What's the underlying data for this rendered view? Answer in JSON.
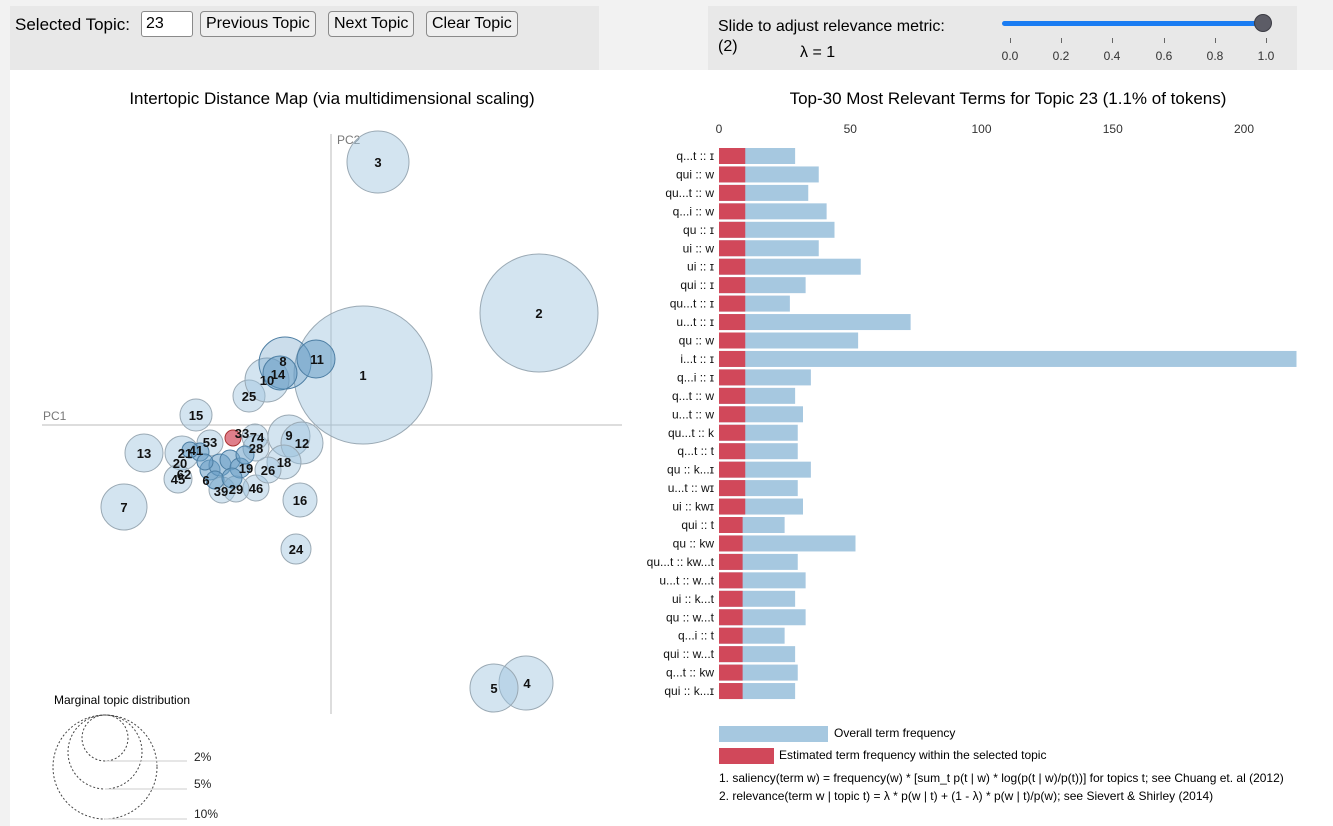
{
  "controls": {
    "selected_label": "Selected Topic:",
    "selected_value": "23",
    "prev_label": "Previous Topic",
    "next_label": "Next Topic",
    "clear_label": "Clear Topic"
  },
  "slider": {
    "label": "Slide to adjust relevance metric:(2)",
    "lambda_text": "λ = 1",
    "value": 1.0,
    "ticks": [
      "0.0",
      "0.2",
      "0.4",
      "0.6",
      "0.8",
      "1.0"
    ],
    "color": "#1a7cf2"
  },
  "map": {
    "title": "Intertopic Distance Map (via multidimensional scaling)",
    "pc1_label": "PC1",
    "pc2_label": "PC2",
    "circle_color": "#9ec4dd",
    "selected_color": "#d1485a",
    "marginal_title": "Marginal topic distribution",
    "marginal_levels": [
      "2%",
      "5%",
      "10%"
    ]
  },
  "terms": {
    "title": "Top-30 Most Relevant Terms for Topic 23 (1.1% of tokens)",
    "axis_ticks": [
      "0",
      "50",
      "100",
      "150",
      "200"
    ],
    "overall_color": "#a6c8e0",
    "topic_color": "#d1485a",
    "legend_overall": "Overall term frequency",
    "legend_topic": "Estimated term frequency within the selected topic",
    "footnote1": "1. saliency(term w) = frequency(w) * [sum_t p(t | w) * log(p(t | w)/p(t))] for topics t; see Chuang et. al (2012)",
    "footnote2": "2. relevance(term w | topic t) = λ * p(w | t) + (1 - λ) * p(w | t)/p(w); see Sievert & Shirley (2014)"
  },
  "chart_data": {
    "type": "bar",
    "orientation": "horizontal",
    "xlim": [
      0,
      220
    ],
    "categories": [
      "q...t :: ɪ",
      "qui :: w",
      "qu...t :: w",
      "q...i :: w",
      "qu :: ɪ",
      "ui :: w",
      "ui :: ɪ",
      "qui :: ɪ",
      "qu...t :: ɪ",
      "u...t :: ɪ",
      "qu :: w",
      "i...t :: ɪ",
      "q...i :: ɪ",
      "q...t :: w",
      "u...t :: w",
      "qu...t :: k",
      "q...t :: t",
      "qu :: k...ɪ",
      "u...t :: wɪ",
      "ui :: kwɪ",
      "qui :: t",
      "qu :: kw",
      "qu...t :: kw...t",
      "u...t :: w...t",
      "ui :: k...t",
      "qu :: w...t",
      "q...i :: t",
      "qui :: w...t",
      "q...t :: kw",
      "qui :: k...ɪ"
    ],
    "series": [
      {
        "name": "Overall term frequency",
        "values": [
          29,
          38,
          34,
          41,
          44,
          38,
          54,
          33,
          27,
          73,
          53,
          220,
          35,
          29,
          32,
          30,
          30,
          35,
          30,
          32,
          25,
          52,
          30,
          33,
          29,
          33,
          25,
          29,
          30,
          29
        ]
      },
      {
        "name": "Estimated term frequency within the selected topic",
        "values": [
          10,
          10,
          10,
          10,
          10,
          10,
          10,
          10,
          10,
          10,
          10,
          10,
          10,
          10,
          10,
          10,
          10,
          10,
          10,
          10,
          9,
          9,
          9,
          9,
          9,
          9,
          9,
          9,
          9,
          9
        ]
      }
    ]
  },
  "topics": [
    {
      "id": "1"
    },
    {
      "id": "2"
    },
    {
      "id": "3"
    },
    {
      "id": "4"
    },
    {
      "id": "5"
    },
    {
      "id": "7"
    },
    {
      "id": "8"
    },
    {
      "id": "9"
    },
    {
      "id": "10"
    },
    {
      "id": "11"
    },
    {
      "id": "12"
    },
    {
      "id": "13"
    },
    {
      "id": "14"
    },
    {
      "id": "15"
    },
    {
      "id": "16"
    },
    {
      "id": "18"
    },
    {
      "id": "20"
    },
    {
      "id": "24"
    },
    {
      "id": "25"
    },
    {
      "id": "26"
    },
    {
      "id": "28"
    },
    {
      "id": "29"
    },
    {
      "id": "45"
    },
    {
      "id": "46"
    },
    {
      "id": "53"
    },
    {
      "id": "62"
    },
    {
      "id": "6"
    },
    {
      "id": "19"
    },
    {
      "id": "74"
    },
    {
      "id": "33"
    },
    {
      "id": "41"
    },
    {
      "id": "21"
    },
    {
      "id": "39"
    }
  ]
}
